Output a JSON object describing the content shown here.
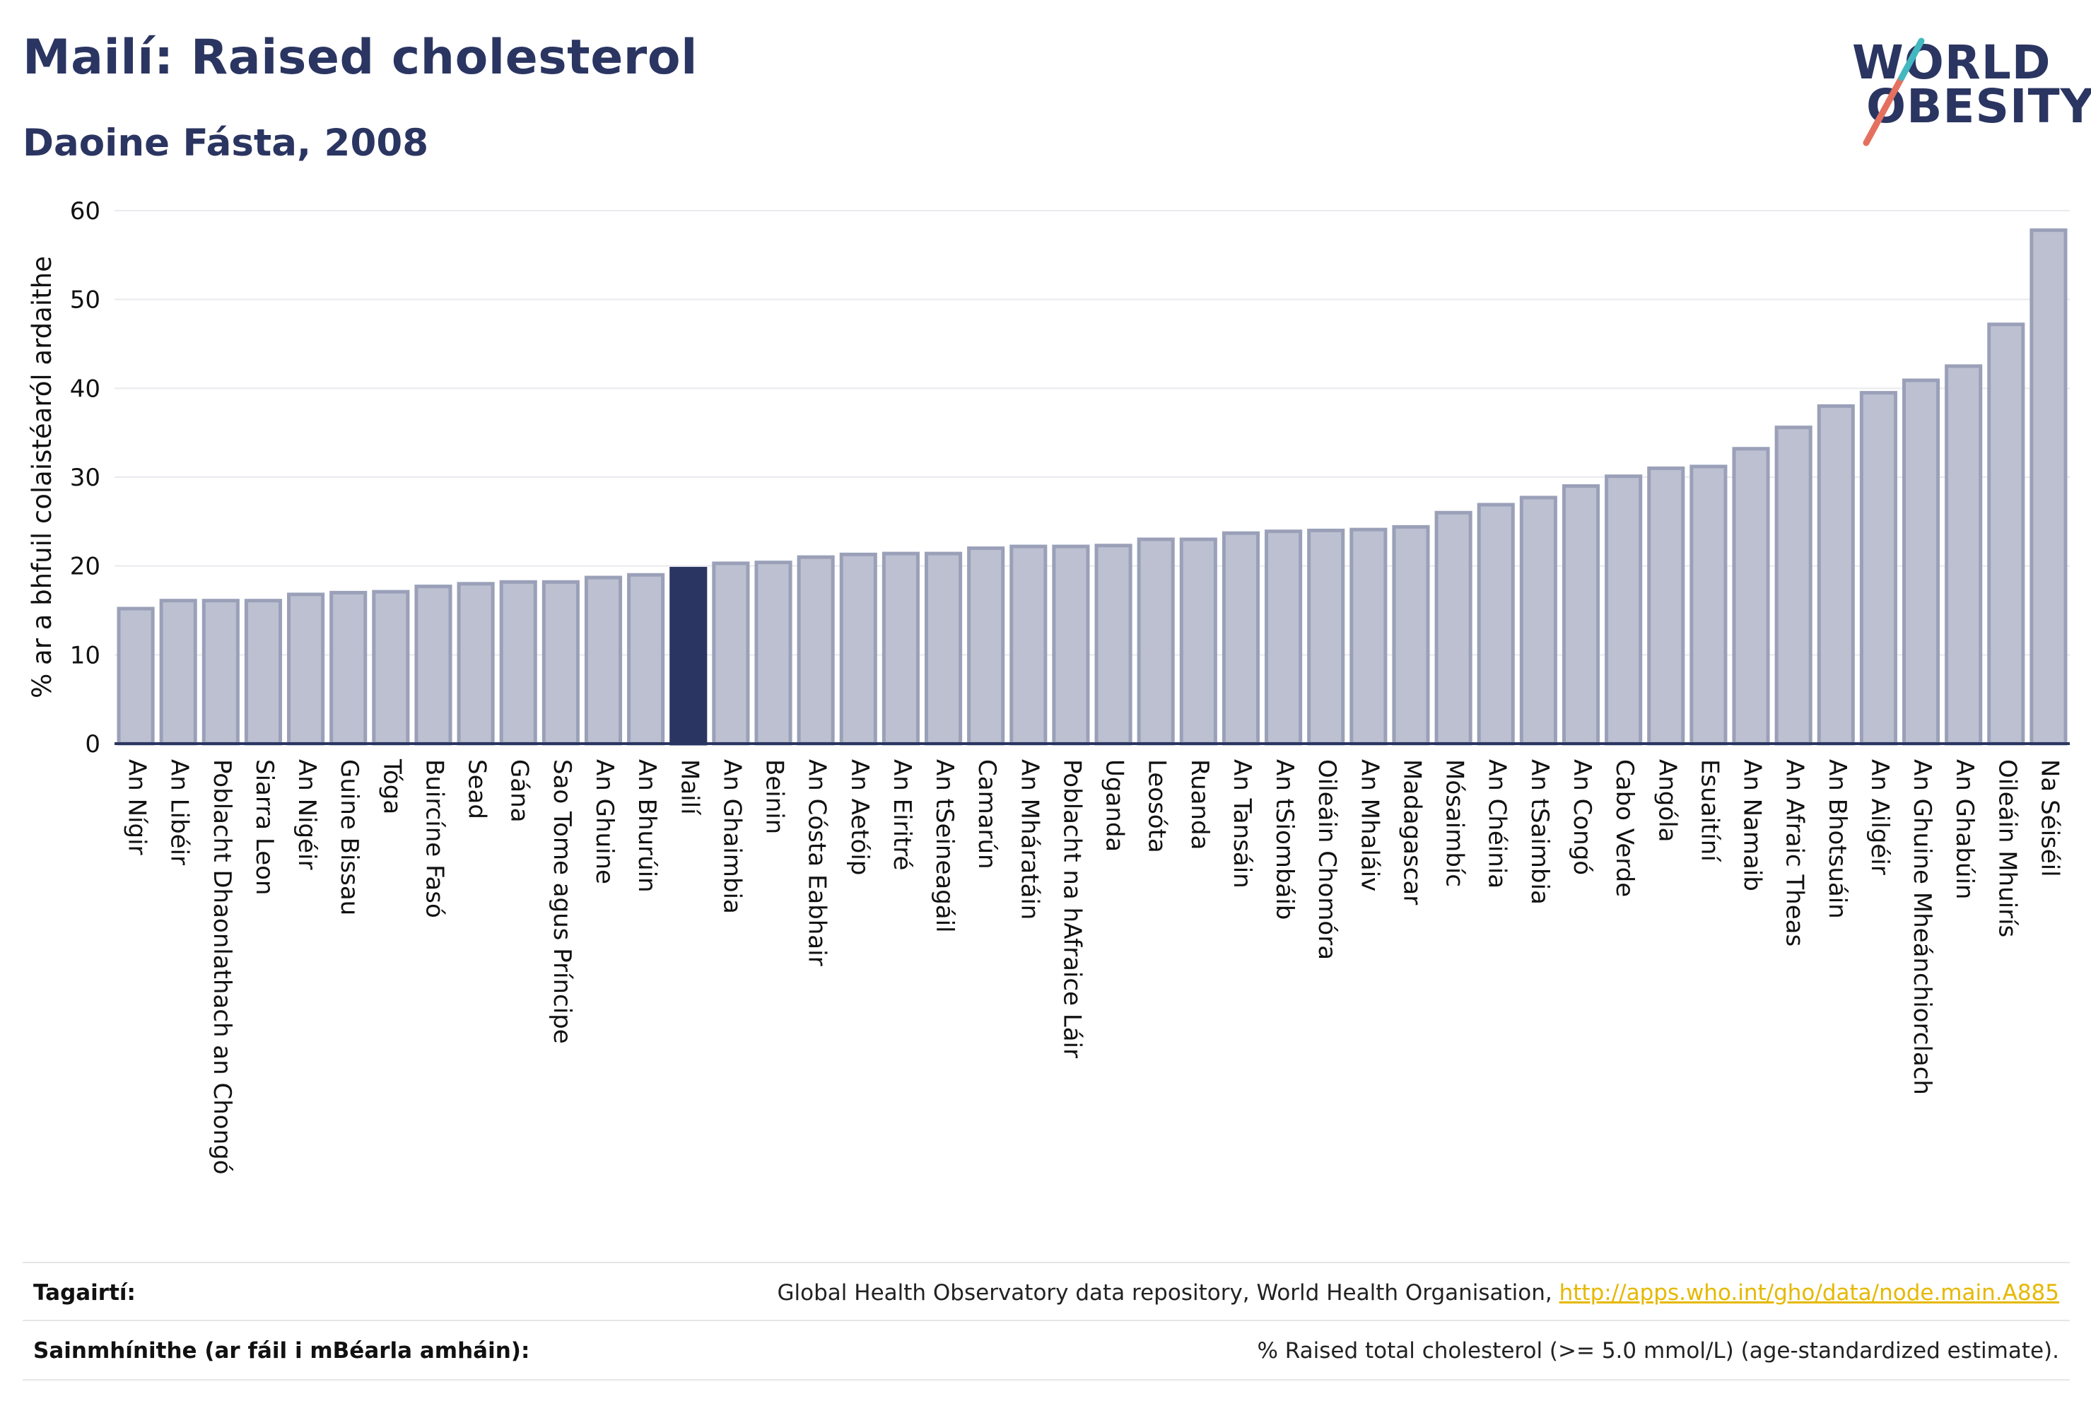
{
  "header": {
    "title": "Mailí: Raised cholesterol",
    "subtitle": "Daoine Fásta, 2008"
  },
  "logo": {
    "line1": "WORLD",
    "line2": "OBESITY",
    "accent_colors": [
      "#e4715f",
      "#44b8c0"
    ]
  },
  "colors": {
    "bar_fill": "#bdc0d0",
    "bar_stroke": "#9aa0b8",
    "highlight_bar": "#2b3561",
    "grid": "#e9e9ef",
    "axis": "#2b3561"
  },
  "chart_data": {
    "type": "bar",
    "ylabel": "% ar a bhfuil colaistéaról ardaithe",
    "ylim": [
      0,
      60
    ],
    "yticks": [
      0,
      10,
      20,
      30,
      40,
      50,
      60
    ],
    "grid": true,
    "highlight": "Mailí",
    "categories": [
      "An Nígir",
      "An Libéir",
      "Poblacht Dhaonlathach an Chongó",
      "Siarra Leon",
      "An Nigéir",
      "Guine Bissau",
      "Tóga",
      "Buircíne Fasó",
      "Sead",
      "Gána",
      "Sao Tome agus Príncipe",
      "An Ghuine",
      "An Bhurúin",
      "Mailí",
      "An Ghaimbia",
      "Beinin",
      "An Cósta Eabhair",
      "An Aetóip",
      "An Eiritré",
      "An tSeineagáil",
      "Camarún",
      "An Mháratáin",
      "Poblacht na hAfraice Láir",
      "Uganda",
      "Leosóta",
      "Ruanda",
      "An Tansáin",
      "An tSiombáib",
      "Oileáin Chomóra",
      "An Mhaláiv",
      "Madagascar",
      "Mósaimbíc",
      "An Chéinia",
      "An tSaimbia",
      "An Congó",
      "Cabo Verde",
      "Angóla",
      "Esuaitíní",
      "An Namaib",
      "An Afraic Theas",
      "An Bhotsuáin",
      "An Ailgéir",
      "An Ghuine Mheánchiorclach",
      "An Ghabúin",
      "Oileáin Mhuirís",
      "Na Séiséil"
    ],
    "values": [
      15.2,
      16.1,
      16.1,
      16.1,
      16.8,
      17.0,
      17.1,
      17.7,
      18.0,
      18.2,
      18.2,
      18.7,
      19.0,
      19.7,
      20.3,
      20.4,
      21.0,
      21.3,
      21.4,
      21.4,
      22.0,
      22.2,
      22.2,
      22.3,
      23.0,
      23.0,
      23.7,
      23.9,
      24.0,
      24.1,
      24.4,
      26.0,
      26.9,
      27.7,
      29.0,
      30.1,
      31.0,
      31.2,
      33.2,
      35.6,
      38.0,
      39.5,
      40.9,
      42.5,
      47.2,
      57.8
    ]
  },
  "footer": {
    "references_label": "Tagairtí:",
    "references_text": "Global Health Observatory data repository, World Health Organisation, ",
    "references_link": "http://apps.who.int/gho/data/node.main.A885",
    "definitions_label": "Sainmhínithe (ar fáil i mBéarla amháin):",
    "definitions_text": "% Raised total cholesterol (>= 5.0 mmol/L) (age-standardized estimate)."
  }
}
